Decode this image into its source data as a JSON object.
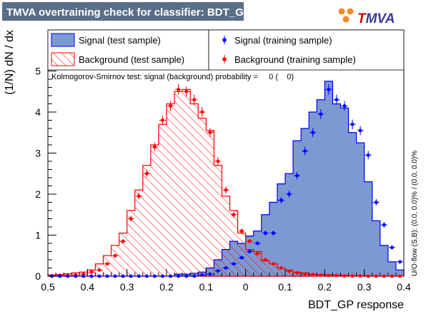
{
  "title": "TMVA overtraining check for classifier: BDT_GP",
  "logo": {
    "text_prefix": "T",
    "text_suffix": "MVA",
    "prefix_color": "#cc0000",
    "suffix_color": "#3a3aa0"
  },
  "side_note": "U/O-flow (S,B): (0.0, 0.0)% / (0.0, 0.0)%",
  "ks_text": "Kolmogorov-Smirnov test: signal (background) probability =     0 (    0)",
  "colors": {
    "title_bg": "#5a6e89",
    "signal_fill": "#7d99d1",
    "signal_line": "#0000ee",
    "background_line": "#ff0000",
    "signal_points": "#0000ff",
    "background_points": "#ff0000"
  },
  "legend": {
    "signal_test": "Signal (test sample)",
    "background_test": "Background (test sample)",
    "signal_train": "Signal (training sample)",
    "background_train": "Background (training sample)"
  },
  "chart_data": {
    "type": "histogram",
    "xlabel": "BDT_GP response",
    "ylabel": "(1/N) dN / dx",
    "xlim": [
      -0.5,
      0.4
    ],
    "ylim": [
      0,
      6.0
    ],
    "x_ticks": [
      -0.5,
      -0.4,
      -0.3,
      -0.2,
      -0.1,
      0,
      0.1,
      0.2,
      0.3,
      0.4
    ],
    "x_tick_labels": [
      "0.5",
      "0.4",
      "0.3",
      "0.2",
      "0.1",
      "0",
      "0.1",
      "0.2",
      "0.3",
      "0.4"
    ],
    "y_ticks": [
      0,
      1,
      2,
      3,
      4,
      5
    ],
    "y_tick_labels": [
      "0",
      "1",
      "2",
      "3",
      "4",
      "5"
    ],
    "bin_edges": [
      -0.5,
      -0.48,
      -0.46,
      -0.44,
      -0.42,
      -0.4,
      -0.38,
      -0.36,
      -0.34,
      -0.32,
      -0.3,
      -0.28,
      -0.26,
      -0.24,
      -0.22,
      -0.2,
      -0.18,
      -0.16,
      -0.14,
      -0.12,
      -0.1,
      -0.08,
      -0.06,
      -0.04,
      -0.02,
      0.0,
      0.02,
      0.04,
      0.06,
      0.08,
      0.1,
      0.12,
      0.14,
      0.16,
      0.18,
      0.2,
      0.22,
      0.24,
      0.26,
      0.28,
      0.3,
      0.32,
      0.34,
      0.36,
      0.38,
      0.4
    ],
    "series": [
      {
        "name": "Signal (test sample)",
        "style": "filled-histogram",
        "values": [
          0,
          0,
          0,
          0,
          0,
          0,
          0,
          0,
          0,
          0,
          0,
          0,
          0,
          0,
          0,
          0,
          0.05,
          0.05,
          0.07,
          0.1,
          0.2,
          0.4,
          0.65,
          0.85,
          0.8,
          0.98,
          1.1,
          1.5,
          1.8,
          2.25,
          2.5,
          3.3,
          3.6,
          4.0,
          4.3,
          4.75,
          4.2,
          4.1,
          3.5,
          3.25,
          2.3,
          1.35,
          0.75,
          0.35,
          0.15
        ]
      },
      {
        "name": "Background (test sample)",
        "style": "hatched-histogram",
        "values": [
          0.03,
          0.04,
          0.06,
          0.08,
          0.1,
          0.15,
          0.3,
          0.5,
          0.75,
          1.05,
          1.6,
          2.1,
          2.7,
          3.2,
          3.7,
          4.2,
          4.5,
          4.55,
          4.2,
          3.85,
          3.55,
          2.7,
          1.95,
          1.6,
          1.05,
          0.65,
          0.6,
          0.37,
          0.3,
          0.2,
          0.15,
          0.1,
          0.08,
          0.05,
          0.04,
          0.03,
          0.02,
          0.02,
          0.01,
          0.01,
          0.01,
          0,
          0,
          0,
          0
        ]
      },
      {
        "name": "Signal (training sample)",
        "style": "points",
        "values": [
          0,
          0,
          0,
          0,
          0,
          0,
          0,
          0,
          0,
          0,
          0,
          0,
          0,
          0,
          0,
          0,
          0,
          0,
          0,
          0.03,
          0.05,
          0.13,
          0.2,
          0.3,
          0.45,
          0.6,
          0.8,
          1.05,
          1.05,
          1.85,
          2.0,
          2.45,
          3.05,
          3.5,
          3.95,
          4.55,
          4.3,
          4.15,
          3.7,
          3.55,
          2.95,
          1.8,
          1.25,
          0.7,
          0.35
        ]
      },
      {
        "name": "Background (training sample)",
        "style": "points",
        "values": [
          0.01,
          0.02,
          0.02,
          0.03,
          0.05,
          0.1,
          0.15,
          0.3,
          0.5,
          0.85,
          1.4,
          1.95,
          2.5,
          3.15,
          3.8,
          4.15,
          4.55,
          4.5,
          4.3,
          4.0,
          3.5,
          2.8,
          2.1,
          1.5,
          1.1,
          0.85,
          0.55,
          0.4,
          0.3,
          0.2,
          0.12,
          0.08,
          0.05,
          0.04,
          0.03,
          0.02,
          0.02,
          0.01,
          0.01,
          0.01,
          0,
          0,
          0,
          0,
          0
        ]
      }
    ],
    "grid": false,
    "legend_position": "top"
  }
}
